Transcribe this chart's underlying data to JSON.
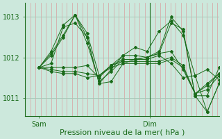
{
  "bg_color": "#cce8dc",
  "grid_color_v": "#d8a0a0",
  "grid_color_h": "#a8c8b8",
  "line_color": "#1a6b1a",
  "xlabel": "Pression niveau de la mer( hPa )",
  "yticks": [
    1011,
    1012,
    1013
  ],
  "ylim": [
    1010.55,
    1013.35
  ],
  "xlim": [
    0,
    56
  ],
  "sam_x": 4,
  "dim_x": 36,
  "xlabel_fontsize": 8,
  "tick_fontsize": 7,
  "series": [
    [
      1011.75,
      1011.85,
      1012.75,
      1012.85,
      1012.5,
      1011.35,
      1011.4,
      1011.85,
      1011.95,
      1011.95,
      1012.05,
      1011.85,
      1011.5,
      1011.55,
      1011.7,
      1011.45
    ],
    [
      1011.75,
      1012.05,
      1012.5,
      1013.05,
      1012.6,
      1011.55,
      1011.8,
      1012.05,
      1012.25,
      1012.15,
      1012.65,
      1012.9,
      1012.55,
      1011.55,
      1010.65,
      1011.35
    ],
    [
      1011.75,
      1012.1,
      1012.55,
      1013.05,
      1012.35,
      1011.4,
      1011.65,
      1011.95,
      1011.95,
      1012.0,
      1012.15,
      1013.0,
      1012.65,
      1011.05,
      1011.05,
      1011.75
    ],
    [
      1011.75,
      1012.15,
      1012.8,
      1013.05,
      1012.5,
      1011.35,
      1011.7,
      1012.05,
      1012.05,
      1012.0,
      1012.1,
      1012.85,
      1012.7,
      1011.05,
      1010.65,
      1011.35
    ],
    [
      1011.75,
      1011.75,
      1011.75,
      1011.75,
      1011.8,
      1011.5,
      1011.8,
      1011.95,
      1011.95,
      1012.0,
      1012.1,
      1012.15,
      1011.7,
      1011.1,
      1011.2,
      1011.55
    ],
    [
      1011.75,
      1011.7,
      1011.65,
      1011.65,
      1011.6,
      1011.55,
      1011.8,
      1011.9,
      1011.9,
      1011.9,
      1011.9,
      1012.0,
      1011.8,
      1011.1,
      1011.3,
      1011.6
    ],
    [
      1011.75,
      1011.65,
      1011.6,
      1011.6,
      1011.5,
      1011.55,
      1011.75,
      1011.85,
      1011.85,
      1011.85,
      1011.85,
      1011.95,
      1011.75,
      1011.1,
      1011.35,
      1011.6
    ]
  ]
}
